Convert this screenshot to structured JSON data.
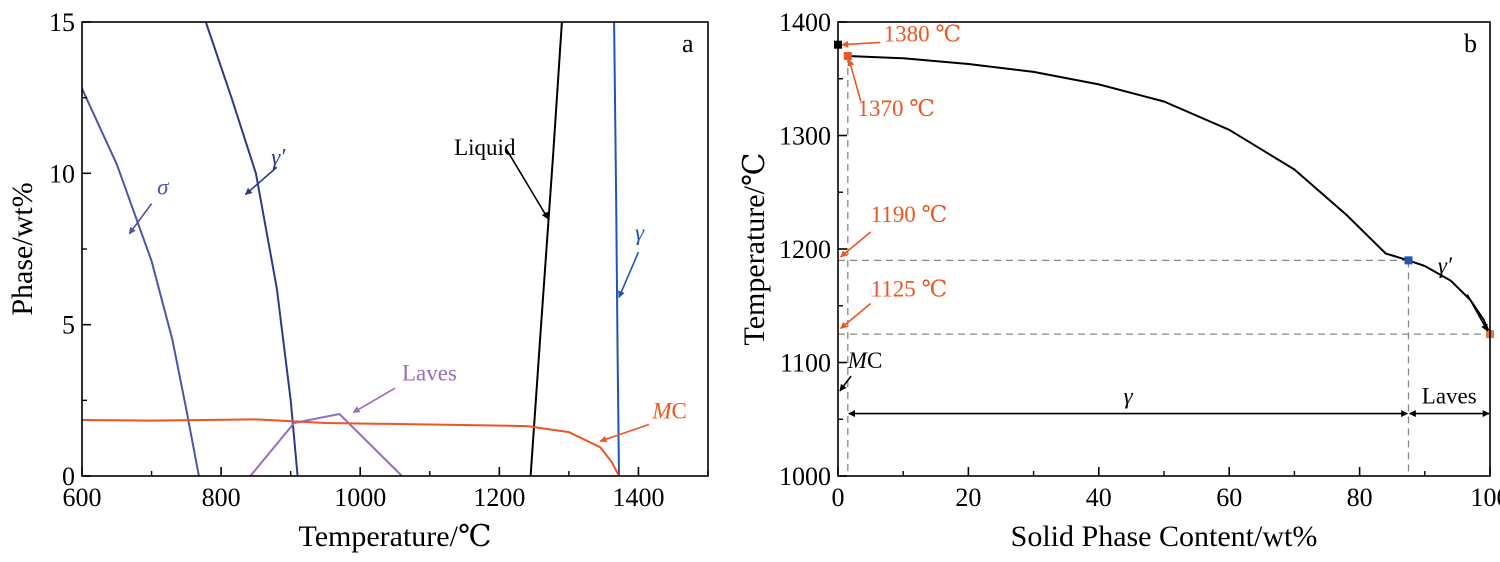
{
  "chart_data": [
    {
      "panel": "a",
      "type": "line",
      "xlabel": "Temperature/℃",
      "ylabel": "Phase/wt%",
      "xlim": [
        600,
        1500
      ],
      "ylim": [
        0,
        15
      ],
      "xticks": [
        600,
        800,
        1000,
        1200,
        1400
      ],
      "yticks": [
        0,
        5,
        10,
        15
      ],
      "x_minor_step": 100,
      "y_minor_step": 2.5,
      "colors": {
        "sigma": "#4a56a8",
        "gamma_prime": "#2b3a8a",
        "liquid": "#000000",
        "gamma": "#1f55b8",
        "laves": "#9b6bc0",
        "mc": "#ee5522"
      },
      "series": [
        {
          "key": "sigma",
          "name": "σ",
          "points": [
            [
              600,
              12.8
            ],
            [
              650,
              10.3
            ],
            [
              700,
              7.1
            ],
            [
              730,
              4.5
            ],
            [
              750,
              2.2
            ],
            [
              768,
              0
            ]
          ]
        },
        {
          "key": "gamma_prime",
          "name": "γ′",
          "points": [
            [
              778,
              15
            ],
            [
              815,
              12.5
            ],
            [
              850,
              10.0
            ],
            [
              880,
              6.2
            ],
            [
              900,
              2.5
            ],
            [
              910,
              0
            ]
          ]
        },
        {
          "key": "liquid",
          "name": "Liquid",
          "points": [
            [
              1245,
              0
            ],
            [
              1260,
              5.0
            ],
            [
              1277,
              10.5
            ],
            [
              1290,
              15
            ]
          ]
        },
        {
          "key": "gamma",
          "name": "γ",
          "points": [
            [
              1365,
              15
            ],
            [
              1368,
              9.0
            ],
            [
              1370,
              4.0
            ],
            [
              1372,
              0
            ]
          ]
        },
        {
          "key": "laves",
          "name": "Laves",
          "points": [
            [
              842,
              0
            ],
            [
              905,
              1.75
            ],
            [
              970,
              2.05
            ],
            [
              1060,
              0
            ]
          ]
        },
        {
          "key": "mc",
          "name": "MC",
          "points": [
            [
              600,
              1.85
            ],
            [
              700,
              1.83
            ],
            [
              850,
              1.87
            ],
            [
              950,
              1.75
            ],
            [
              1100,
              1.7
            ],
            [
              1240,
              1.65
            ],
            [
              1300,
              1.45
            ],
            [
              1345,
              0.95
            ],
            [
              1362,
              0.45
            ],
            [
              1372,
              0
            ]
          ]
        }
      ],
      "annotations": [
        {
          "key": "sigma",
          "label": "σ",
          "label_x": 708,
          "label_y": 9.3,
          "arrow_from": [
            700,
            9.0
          ],
          "arrow_to": [
            668,
            8.0
          ]
        },
        {
          "key": "gamma_prime",
          "label": "γ′",
          "label_x": 872,
          "label_y": 10.3,
          "arrow_from": [
            880,
            10.2
          ],
          "arrow_to": [
            835,
            9.3
          ]
        },
        {
          "key": "liquid",
          "label": "Liquid",
          "label_x": 1135,
          "label_y": 10.6,
          "arrow_from": [
            1210,
            10.8
          ],
          "arrow_to": [
            1270,
            8.5
          ]
        },
        {
          "key": "gamma",
          "label": "γ",
          "label_x": 1395,
          "label_y": 7.8,
          "arrow_from": [
            1400,
            7.4
          ],
          "arrow_to": [
            1372,
            5.9
          ]
        },
        {
          "key": "laves",
          "label": "Laves",
          "label_x": 1060,
          "label_y": 3.15,
          "arrow_from": [
            1050,
            2.9
          ],
          "arrow_to": [
            990,
            2.1
          ]
        },
        {
          "key": "mc",
          "label": "MC",
          "label_x": 1420,
          "label_y": 1.9,
          "arrow_from": [
            1415,
            1.7
          ],
          "arrow_to": [
            1345,
            1.15
          ]
        }
      ]
    },
    {
      "panel": "b",
      "type": "line",
      "xlabel": "Solid Phase Content/wt%",
      "ylabel": "Temperature/℃",
      "xlim": [
        0,
        100
      ],
      "ylim": [
        1000,
        1400
      ],
      "xticks": [
        0,
        20,
        40,
        60,
        80,
        100
      ],
      "yticks": [
        1000,
        1100,
        1200,
        1300,
        1400
      ],
      "x_minor_step": 10,
      "y_minor_step": 50,
      "series": [
        {
          "key": "solidification",
          "name": "solidification curve",
          "color": "#000000",
          "points": [
            [
              1.5,
              1370
            ],
            [
              10,
              1368
            ],
            [
              20,
              1363
            ],
            [
              30,
              1356
            ],
            [
              40,
              1345
            ],
            [
              50,
              1330
            ],
            [
              60,
              1305
            ],
            [
              70,
              1270
            ],
            [
              78,
              1230
            ],
            [
              84,
              1196
            ],
            [
              87.5,
              1190
            ],
            [
              90,
              1185
            ],
            [
              94,
              1172
            ],
            [
              97,
              1155
            ],
            [
              99,
              1138
            ],
            [
              100,
              1125
            ]
          ]
        }
      ],
      "markers": [
        {
          "key": "m1380",
          "x": 0,
          "y": 1380,
          "color": "#000000"
        },
        {
          "key": "m1370",
          "x": 1.5,
          "y": 1370,
          "color": "#ee5522"
        },
        {
          "key": "m1190",
          "x": 87.5,
          "y": 1190,
          "color": "#1f55b8"
        },
        {
          "key": "m1125",
          "x": 100,
          "y": 1125,
          "color": "#e07b39"
        }
      ],
      "dashed_lines": [
        {
          "key": "h1190",
          "points": [
            [
              0,
              1190
            ],
            [
              87.5,
              1190
            ]
          ]
        },
        {
          "key": "h1125",
          "points": [
            [
              0,
              1125
            ],
            [
              100,
              1125
            ]
          ]
        },
        {
          "key": "v15",
          "points": [
            [
              1.5,
              1370
            ],
            [
              1.5,
              1000
            ]
          ]
        },
        {
          "key": "v875",
          "points": [
            [
              87.5,
              1190
            ],
            [
              87.5,
              1000
            ]
          ]
        }
      ],
      "annotations": [
        {
          "key": "t1380",
          "label": "1380 ℃",
          "color": "#ee5522",
          "label_x": 7,
          "label_y": 1383,
          "arrow_from": [
            6.5,
            1382
          ],
          "arrow_to": [
            0.6,
            1380
          ]
        },
        {
          "key": "t1370",
          "label": "1370 ℃",
          "color": "#ee5522",
          "label_x": 3,
          "label_y": 1317,
          "arrow_from": [
            3.5,
            1330
          ],
          "arrow_to": [
            1.7,
            1367
          ]
        },
        {
          "key": "t1190",
          "label": "1190 ℃",
          "color": "#ee5522",
          "label_x": 5,
          "label_y": 1224,
          "arrow_from": [
            5,
            1215
          ],
          "arrow_to": [
            0.4,
            1193
          ]
        },
        {
          "key": "t1125",
          "label": "1125 ℃",
          "color": "#ee5522",
          "label_x": 5,
          "label_y": 1158,
          "arrow_from": [
            5,
            1152
          ],
          "arrow_to": [
            0.4,
            1130
          ]
        },
        {
          "key": "mc",
          "label": "MC",
          "color": "#000000",
          "label_x": 1.5,
          "label_y": 1095,
          "arrow_from": [
            2,
            1088
          ],
          "arrow_to": [
            0.3,
            1075
          ]
        },
        {
          "key": "gp",
          "label": "γ′",
          "color": "#000000",
          "label_x": 92,
          "label_y": 1179,
          "arrow_from": [
            96.5,
            1160
          ],
          "arrow_to": [
            99.6,
            1128
          ]
        }
      ],
      "ranges": [
        {
          "key": "gamma",
          "label": "γ",
          "from": 1.5,
          "to": 87.5,
          "y": 1055
        },
        {
          "key": "laves",
          "label": "Laves",
          "from": 87.5,
          "to": 100,
          "y": 1055
        }
      ]
    }
  ]
}
